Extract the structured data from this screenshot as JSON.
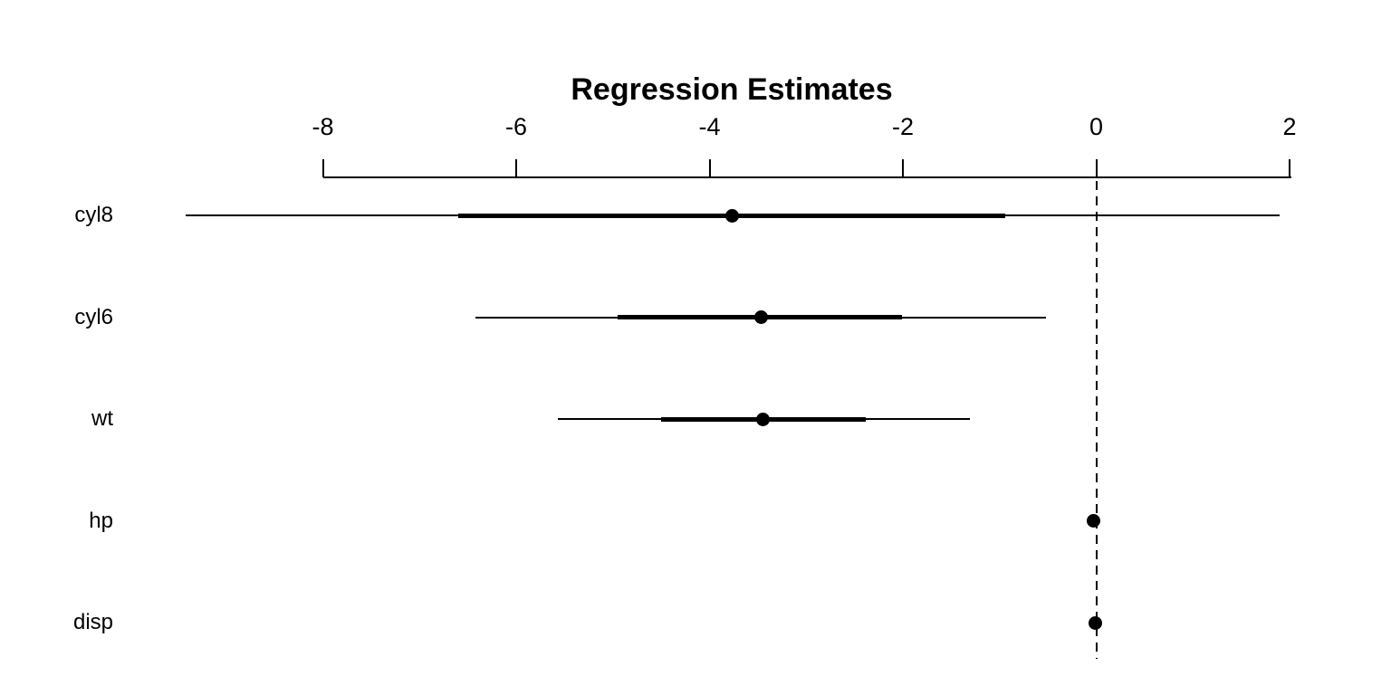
{
  "chart_data": {
    "type": "scatter",
    "variant": "coefficient-forest-plot",
    "title": "Regression Estimates",
    "x_axis": {
      "position": "top",
      "ticks": [
        -8,
        -6,
        -4,
        -2,
        0,
        2
      ],
      "range": [
        -9.6,
        2.1
      ],
      "grid": false
    },
    "reference_line": {
      "x": 0,
      "style": "dashed",
      "color": "#000000"
    },
    "foreground_color": "#000000",
    "background_color": "#ffffff",
    "legend": null,
    "coefficients": [
      {
        "label": "cyl8",
        "estimate": -3.77,
        "inner_ci": [
          -6.6,
          -0.94
        ],
        "outer_ci": [
          -9.42,
          1.9
        ]
      },
      {
        "label": "cyl6",
        "estimate": -3.47,
        "inner_ci": [
          -4.95,
          -2.01
        ],
        "outer_ci": [
          -6.42,
          -0.52
        ]
      },
      {
        "label": "wt",
        "estimate": -3.45,
        "inner_ci": [
          -4.5,
          -2.38
        ],
        "outer_ci": [
          -5.57,
          -1.31
        ]
      },
      {
        "label": "hp",
        "estimate": -0.03,
        "inner_ci": [
          -0.04,
          -0.01
        ],
        "outer_ci": [
          -0.06,
          0.0
        ]
      },
      {
        "label": "disp",
        "estimate": -0.01,
        "inner_ci": [
          -0.02,
          0.01
        ],
        "outer_ci": [
          -0.03,
          0.02
        ]
      }
    ]
  }
}
